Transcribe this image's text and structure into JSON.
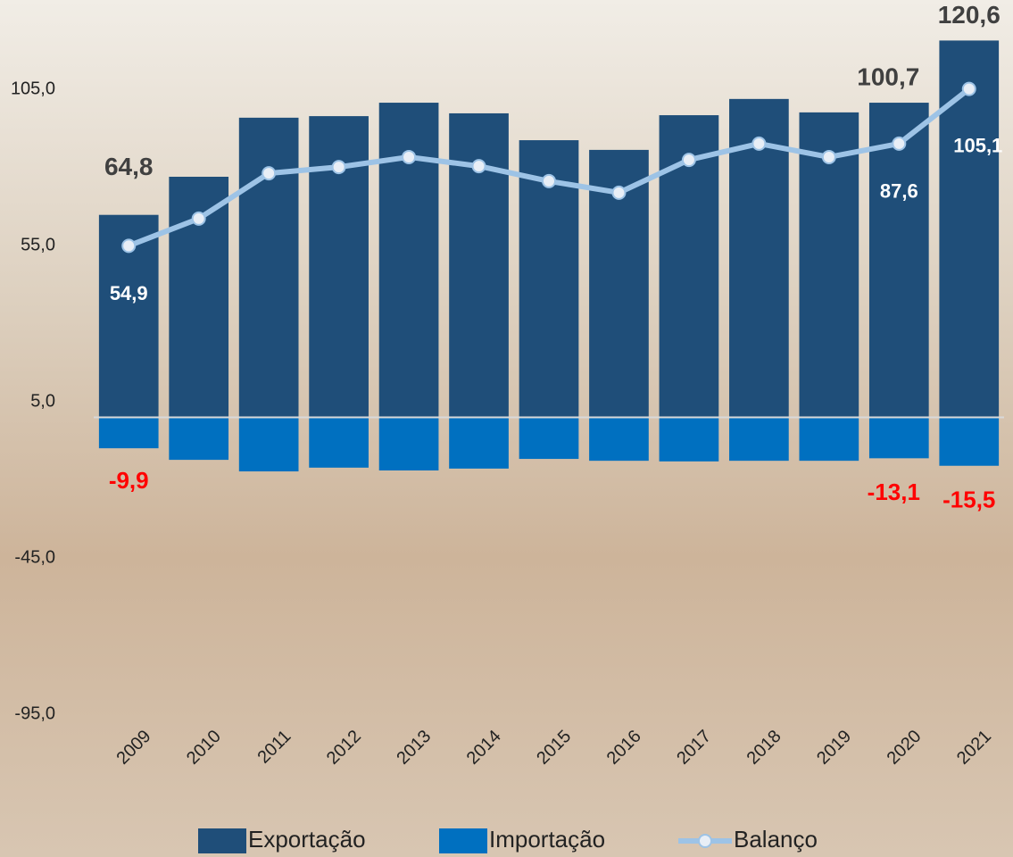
{
  "chart_data": {
    "type": "bar_line",
    "categories": [
      "2009",
      "2010",
      "2011",
      "2012",
      "2013",
      "2014",
      "2015",
      "2016",
      "2017",
      "2018",
      "2019",
      "2020",
      "2021"
    ],
    "series": [
      {
        "name": "Exportação",
        "type": "bar",
        "color": "#1f4e79",
        "values": [
          64.8,
          77.0,
          95.9,
          96.4,
          100.7,
          97.3,
          88.7,
          85.6,
          96.7,
          101.9,
          97.6,
          100.7,
          120.6
        ],
        "value_labels": [
          "64,8",
          null,
          null,
          null,
          null,
          null,
          null,
          null,
          null,
          null,
          null,
          "100,7",
          "120,6"
        ]
      },
      {
        "name": "Importação",
        "type": "bar",
        "color": "#0070c0",
        "values": [
          -9.9,
          -13.6,
          -17.3,
          -16.1,
          -17.0,
          -16.4,
          -13.3,
          -13.9,
          -14.1,
          -13.9,
          -13.9,
          -13.1,
          -15.5
        ],
        "value_labels": [
          "-9,9",
          null,
          null,
          null,
          null,
          null,
          null,
          null,
          null,
          null,
          null,
          "-13,1",
          "-15,5"
        ]
      },
      {
        "name": "Balanço",
        "type": "line",
        "color": "#9dc3e6",
        "values": [
          54.9,
          63.6,
          78.1,
          80.1,
          83.3,
          80.4,
          75.6,
          71.9,
          82.4,
          87.6,
          83.3,
          87.6,
          105.1
        ],
        "value_labels": [
          "54,9",
          null,
          null,
          null,
          null,
          null,
          null,
          null,
          null,
          null,
          null,
          "87,6",
          "105,1"
        ]
      }
    ],
    "ylim": [
      -95,
      130
    ],
    "yticks": [
      {
        "value": -95,
        "label": "-95,0"
      },
      {
        "value": -45,
        "label": "-45,0"
      },
      {
        "value": 5,
        "label": "5,0"
      },
      {
        "value": 55,
        "label": "55,0"
      },
      {
        "value": 105,
        "label": "105,0"
      }
    ],
    "legend": "bottom"
  }
}
